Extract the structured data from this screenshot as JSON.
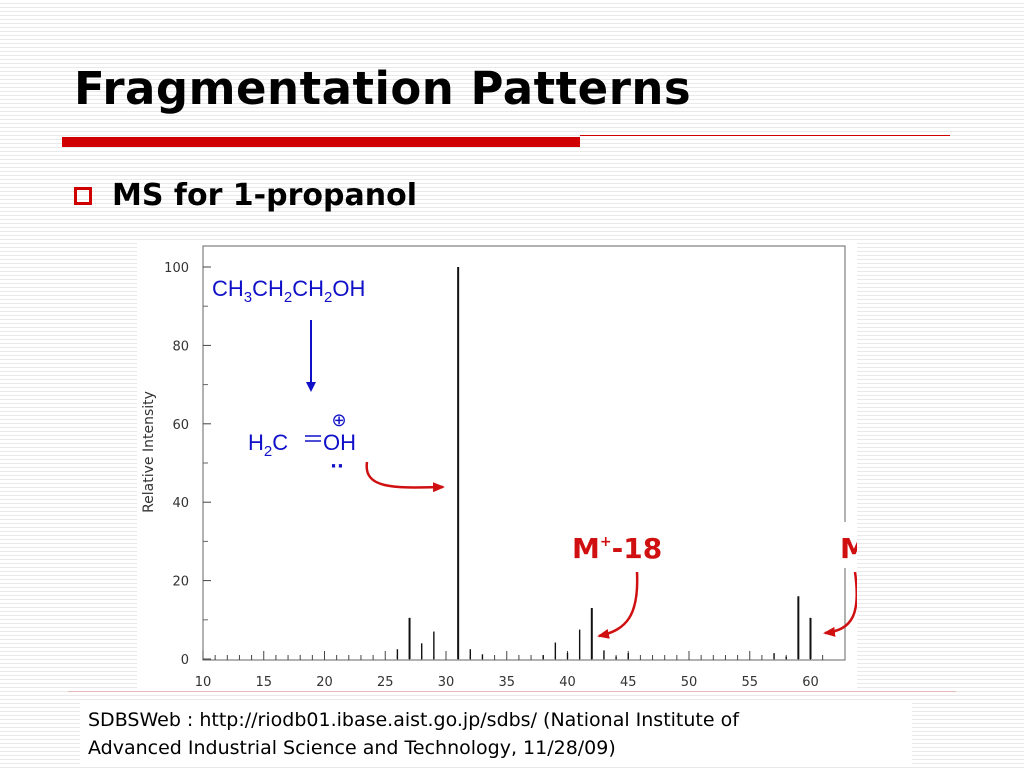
{
  "slide": {
    "title": "Fragmentation Patterns",
    "bullet": "MS for 1-propanol",
    "citation": "SDBSWeb : http://riodb01.ibase.aist.go.jp/sdbs/ (National Institute of\nAdvanced Industrial Science and Technology, 11/28/09)"
  },
  "colors": {
    "accent_red": "#d10000",
    "annotation_blue": "#1010c8",
    "annotation_red": "#d01010"
  },
  "chart_data": {
    "type": "bar",
    "ylabel": "Relative Intensity",
    "xlabel": "",
    "xlim": [
      10,
      62
    ],
    "ylim": [
      0,
      100
    ],
    "xticks": [
      10,
      15,
      20,
      25,
      30,
      35,
      40,
      45,
      50,
      55,
      60
    ],
    "yticks": [
      0,
      20,
      40,
      60,
      80,
      100
    ],
    "peaks": [
      {
        "mz": 26,
        "intensity": 2.5
      },
      {
        "mz": 27,
        "intensity": 10.5
      },
      {
        "mz": 28,
        "intensity": 4
      },
      {
        "mz": 29,
        "intensity": 7
      },
      {
        "mz": 31,
        "intensity": 100
      },
      {
        "mz": 32,
        "intensity": 2.5
      },
      {
        "mz": 33,
        "intensity": 1.2
      },
      {
        "mz": 38,
        "intensity": 1
      },
      {
        "mz": 39,
        "intensity": 4.2
      },
      {
        "mz": 40,
        "intensity": 1.6
      },
      {
        "mz": 41,
        "intensity": 7.5
      },
      {
        "mz": 42,
        "intensity": 13
      },
      {
        "mz": 43,
        "intensity": 2.2
      },
      {
        "mz": 44,
        "intensity": 0.6
      },
      {
        "mz": 45,
        "intensity": 1.5
      },
      {
        "mz": 57,
        "intensity": 1.5
      },
      {
        "mz": 58,
        "intensity": 0.6
      },
      {
        "mz": 59,
        "intensity": 16
      },
      {
        "mz": 60,
        "intensity": 10.5
      }
    ],
    "annotations": {
      "formula": {
        "main": [
          "CH",
          "3",
          "CH",
          "2",
          "CH",
          "2",
          "OH"
        ]
      },
      "fragment": {
        "left": [
          "H",
          "2",
          "C"
        ],
        "bond": "=",
        "right": "OH",
        "charge": "⊕",
        "lone_pair": "··"
      },
      "labels": [
        {
          "text": "M",
          "sup": "+",
          "suffix": "-18",
          "points_to_mz": 42
        },
        {
          "text": "M",
          "sup": "+",
          "suffix": "",
          "points_to_mz": 60
        }
      ]
    }
  }
}
